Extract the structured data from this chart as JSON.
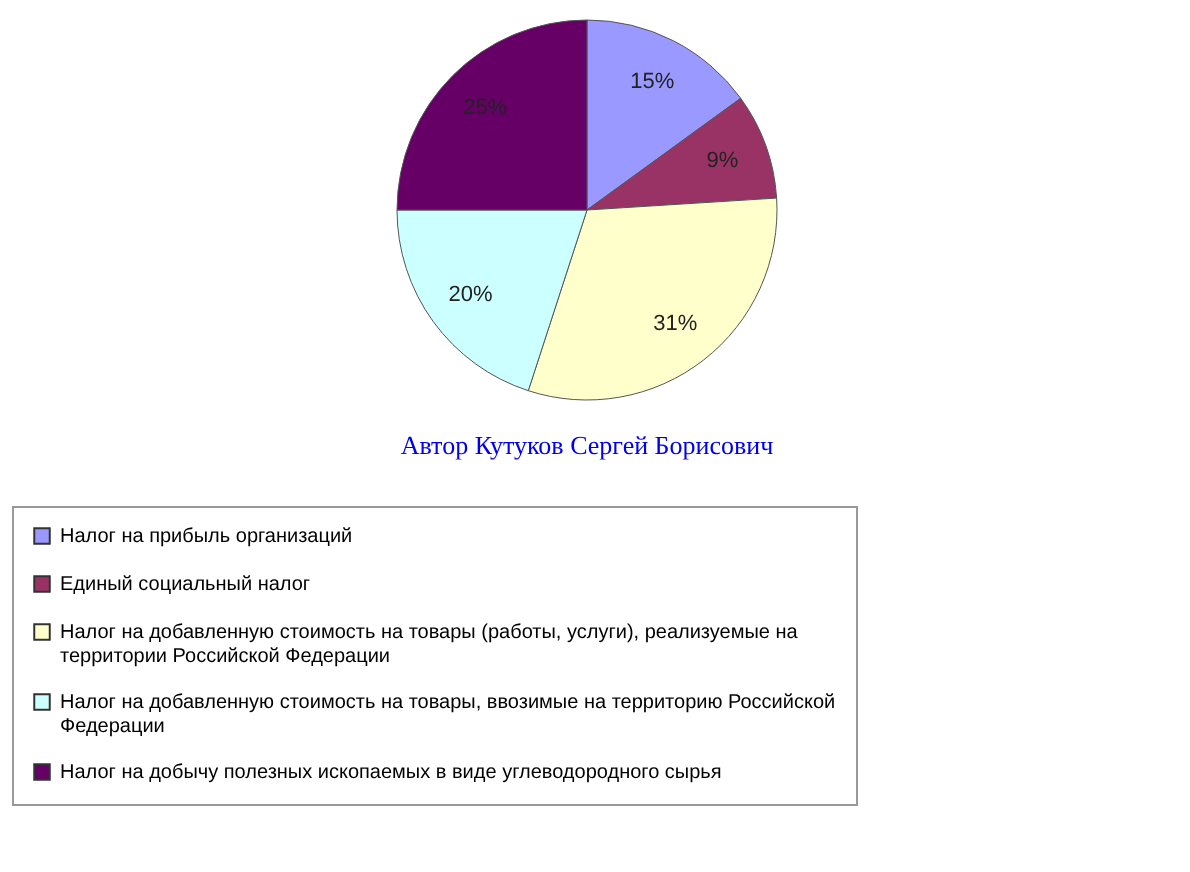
{
  "chart_data": {
    "type": "pie",
    "categories": [
      "Налог на прибыль организаций",
      "Единый социальный налог",
      "Налог на добавленную стоимость на товары (работы, услуги), реализуемые на территории Российской Федерации",
      "Налог на добавленную стоимость на товары, ввозимые на территорию Российской Федерации",
      "Налог на добычу полезных ископаемых в виде углеводородного сырья"
    ],
    "values": [
      15,
      9,
      31,
      20,
      25
    ],
    "colors": [
      "#9999ff",
      "#993366",
      "#ffffcc",
      "#ccffff",
      "#660066"
    ],
    "value_labels": [
      "15%",
      "9%",
      "31%",
      "20%",
      "25%"
    ],
    "annotations": [
      "Автор Кутуков Сергей Борисович"
    ],
    "legend": "bottom"
  }
}
